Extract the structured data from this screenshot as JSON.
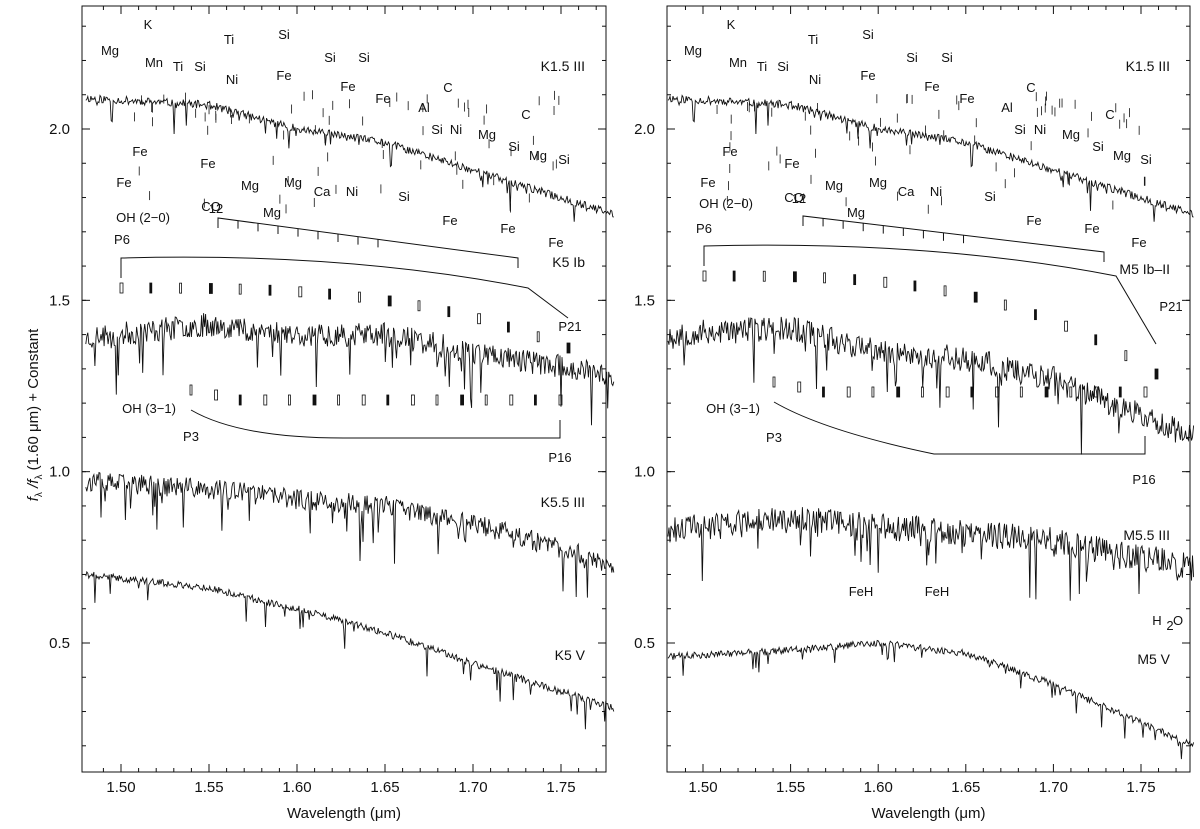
{
  "figure": {
    "ylabel_main": "f",
    "ylabel_sub1": "λ",
    "ylabel_slash": " /f",
    "ylabel_sub2": "λ",
    "ylabel_rest": " (1.60 μm) + Constant"
  },
  "chart_data": [
    {
      "type": "line",
      "panel": "left",
      "xlabel": "Wavelength (μm)",
      "ylabel": "f_λ /f_λ (1.60 μm) + Constant",
      "xlim": [
        1.48,
        1.78
      ],
      "ylim": [
        0.15,
        2.42
      ],
      "xticks": [
        1.5,
        1.55,
        1.6,
        1.65,
        1.7,
        1.75
      ],
      "xtick_labels": [
        "1.50",
        "1.55",
        "1.60",
        "1.65",
        "1.70",
        "1.75"
      ],
      "yticks": [
        0.5,
        1.0,
        1.5,
        2.0
      ],
      "ytick_labels": [
        "0.5",
        "1.0",
        "1.5",
        "2.0"
      ],
      "series": [
        {
          "name": "K1.5 III",
          "x": [
            1.48,
            1.55,
            1.6,
            1.65,
            1.7,
            1.78
          ],
          "y": [
            2.09,
            2.07,
            2.0,
            1.96,
            1.88,
            1.75
          ]
        },
        {
          "name": "K5 Ib",
          "x": [
            1.48,
            1.55,
            1.6,
            1.65,
            1.7,
            1.78
          ],
          "y": [
            1.39,
            1.43,
            1.4,
            1.4,
            1.35,
            1.28
          ]
        },
        {
          "name": "K5.5 III",
          "x": [
            1.48,
            1.55,
            1.6,
            1.65,
            1.7,
            1.78
          ],
          "y": [
            0.97,
            0.95,
            0.92,
            0.9,
            0.85,
            0.73
          ]
        },
        {
          "name": "K5 V",
          "x": [
            1.48,
            1.55,
            1.6,
            1.65,
            1.7,
            1.78
          ],
          "y": [
            0.7,
            0.66,
            0.6,
            0.53,
            0.44,
            0.31
          ]
        }
      ],
      "annotations": [
        "Mg",
        "K",
        "Mn",
        "Ti",
        "Si",
        "Ti",
        "Si",
        "Ni",
        "Fe",
        "Si",
        "Si",
        "Fe",
        "Fe",
        "Al",
        "C",
        "Si",
        "Ni",
        "Mg",
        "C",
        "Si",
        "Mg",
        "Si",
        "Fe",
        "Fe",
        "Fe",
        "Mg",
        "Mg",
        "Ca",
        "Ni",
        "Si",
        "Fe",
        "Fe",
        "Fe",
        "Mg",
        "OH (2−0)",
        "12",
        "CO",
        "P6",
        "P21",
        "OH (3−1)",
        "P3",
        "P16"
      ]
    },
    {
      "type": "line",
      "panel": "right",
      "xlabel": "Wavelength (μm)",
      "xlim": [
        1.48,
        1.78
      ],
      "ylim": [
        0.15,
        2.42
      ],
      "xticks": [
        1.5,
        1.55,
        1.6,
        1.65,
        1.7,
        1.75
      ],
      "xtick_labels": [
        "1.50",
        "1.55",
        "1.60",
        "1.65",
        "1.70",
        "1.75"
      ],
      "yticks": [
        0.5,
        1.0,
        1.5,
        2.0
      ],
      "ytick_labels": [
        "0.5",
        "1.0",
        "1.5",
        "2.0"
      ],
      "series": [
        {
          "name": "K1.5 III",
          "x": [
            1.48,
            1.55,
            1.6,
            1.65,
            1.7,
            1.78
          ],
          "y": [
            2.09,
            2.07,
            2.0,
            1.96,
            1.88,
            1.75
          ]
        },
        {
          "name": "M5 Ib–II",
          "x": [
            1.48,
            1.55,
            1.6,
            1.65,
            1.7,
            1.78
          ],
          "y": [
            1.4,
            1.42,
            1.35,
            1.33,
            1.27,
            1.1
          ]
        },
        {
          "name": "M5.5 III",
          "x": [
            1.48,
            1.55,
            1.6,
            1.65,
            1.7,
            1.78
          ],
          "y": [
            0.83,
            0.86,
            0.84,
            0.82,
            0.8,
            0.72
          ]
        },
        {
          "name": "M5 V",
          "x": [
            1.48,
            1.55,
            1.6,
            1.65,
            1.7,
            1.78
          ],
          "y": [
            0.46,
            0.48,
            0.5,
            0.47,
            0.38,
            0.2
          ]
        }
      ],
      "annotations": [
        "Mg",
        "K",
        "Mn",
        "Ti",
        "Si",
        "Ti",
        "Si",
        "Ni",
        "Fe",
        "Si",
        "Si",
        "Fe",
        "Fe",
        "Al",
        "C",
        "Si",
        "Ni",
        "Mg",
        "C",
        "Si",
        "Mg",
        "Si",
        "Fe",
        "Fe",
        "Fe",
        "Mg",
        "Mg",
        "Ca",
        "Ni",
        "Si",
        "Fe",
        "Fe",
        "Fe",
        "Mg",
        "OH (2−0)",
        "12",
        "CO",
        "P6",
        "P21",
        "OH (3−1)",
        "P3",
        "P16",
        "FeH",
        "FeH",
        "H",
        "2",
        "O"
      ]
    }
  ]
}
